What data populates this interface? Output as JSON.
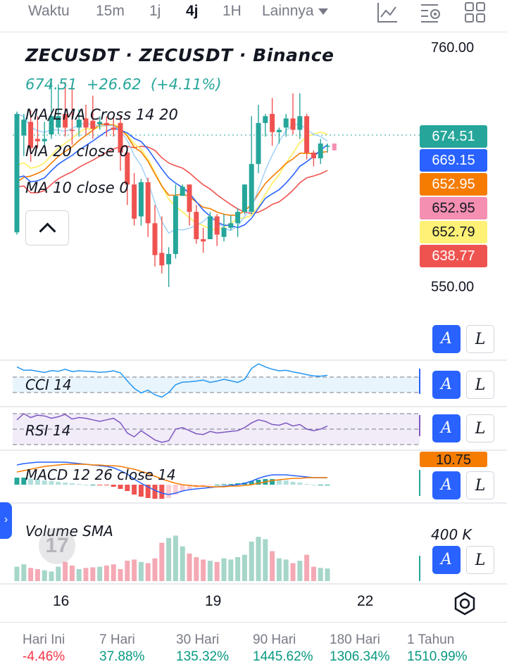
{
  "toolbar": {
    "items": [
      "Waktu",
      "15m",
      "1j",
      "4j",
      "1H",
      "Lainnya"
    ],
    "active": "4j",
    "icons": [
      "chart-style-icon",
      "indicator-settings-icon",
      "layout-grid-icon"
    ]
  },
  "legend": {
    "title": "ZECUSDT · ZECUSDT · Binance",
    "price": "674.51  +26.62  (+4.11%)",
    "ma_ema_cross": "MA/EMA Cross 14 20",
    "ma20": "MA 20 close 0",
    "ma10": "MA 10 close 0"
  },
  "price_axis": {
    "top": "760.00",
    "mid": "550.00"
  },
  "price_tags": [
    {
      "value": "674.51",
      "color": "#26a69a"
    },
    {
      "value": "669.15",
      "color": "#2962ff"
    },
    {
      "value": "652.95",
      "color": "#f57c00"
    },
    {
      "value": "652.95",
      "color": "#f48fb1"
    },
    {
      "value": "652.79",
      "color": "#fff176"
    },
    {
      "value": "638.77",
      "color": "#ef5350"
    }
  ],
  "panes": {
    "cci": "CCI 14",
    "rsi": "RSI 14",
    "macd": "MACD 12 26 close 14",
    "macd_tag": "10.75",
    "volume": "Volume SMA",
    "volume_axis": "400 K"
  },
  "buttons": {
    "a": "A",
    "l": "L"
  },
  "watermark": "17",
  "dates": [
    "16",
    "19",
    "22"
  ],
  "performance": [
    {
      "label": "Hari Ini",
      "value": "-4.46%",
      "sign": "neg"
    },
    {
      "label": "7 Hari",
      "value": "37.88%",
      "sign": "pos"
    },
    {
      "label": "30 Hari",
      "value": "135.32%",
      "sign": "pos"
    },
    {
      "label": "90 Hari",
      "value": "1445.62%",
      "sign": "pos"
    },
    {
      "label": "180 Hari",
      "value": "1306.34%",
      "sign": "pos"
    },
    {
      "label": "1 Tahun",
      "value": "1510.99%",
      "sign": "pos"
    }
  ],
  "chart_data": {
    "type": "candlestick",
    "symbol": "ZECUSDT",
    "interval": "4j",
    "ylim": [
      530,
      770
    ],
    "colors": {
      "up": "#26a69a",
      "down": "#ef5350",
      "ma_fast": "#2962ff",
      "ema_slow": "#f57c00",
      "ma20": "#ef5350",
      "ma10": "#fff176",
      "cross": "#90caf9"
    },
    "candles": [
      [
        598,
        702,
        596,
        704
      ],
      [
        683,
        697,
        665,
        702
      ],
      [
        695,
        672,
        660,
        705
      ],
      [
        680,
        678,
        672,
        700
      ],
      [
        678,
        680,
        674,
        695
      ],
      [
        684,
        700,
        680,
        732
      ],
      [
        690,
        700,
        684,
        728
      ],
      [
        702,
        690,
        682,
        730
      ],
      [
        688,
        687,
        675,
        728
      ],
      [
        690,
        697,
        682,
        706
      ],
      [
        698,
        690,
        684,
        710
      ],
      [
        696,
        689,
        680,
        718
      ],
      [
        693,
        695,
        688,
        700
      ],
      [
        694,
        692,
        682,
        700
      ],
      [
        690,
        688,
        682,
        700
      ],
      [
        694,
        668,
        652,
        700
      ],
      [
        668,
        640,
        622,
        674
      ],
      [
        640,
        610,
        604,
        650
      ],
      [
        612,
        642,
        604,
        645
      ],
      [
        642,
        606,
        594,
        646
      ],
      [
        606,
        578,
        568,
        622
      ],
      [
        580,
        569,
        562,
        612
      ],
      [
        570,
        579,
        550,
        585
      ],
      [
        579,
        630,
        575,
        640
      ],
      [
        630,
        638,
        630,
        640
      ],
      [
        640,
        616,
        604,
        640
      ],
      [
        616,
        592,
        588,
        622
      ],
      [
        592,
        590,
        580,
        602
      ],
      [
        592,
        612,
        592,
        616
      ],
      [
        612,
        596,
        586,
        614
      ],
      [
        594,
        602,
        590,
        614
      ],
      [
        602,
        606,
        600,
        613
      ],
      [
        606,
        616,
        594,
        619
      ],
      [
        616,
        640,
        614,
        640
      ],
      [
        616,
        658,
        614,
        700
      ],
      [
        658,
        694,
        650,
        710
      ],
      [
        694,
        700,
        682,
        702
      ],
      [
        702,
        686,
        674,
        716
      ],
      [
        686,
        688,
        676,
        690
      ],
      [
        690,
        698,
        682,
        702
      ],
      [
        698,
        688,
        684,
        720
      ],
      [
        688,
        700,
        680,
        720
      ],
      [
        700,
        668,
        662,
        702
      ],
      [
        668,
        663,
        656,
        670
      ],
      [
        663,
        676,
        658,
        680
      ],
      [
        674,
        674,
        668,
        676
      ]
    ],
    "cci": [
      120,
      98,
      100,
      92,
      84,
      96,
      92,
      105,
      90,
      95,
      92,
      90,
      85,
      88,
      95,
      82,
      30,
      -18,
      -48,
      -30,
      -60,
      -75,
      -45,
      5,
      22,
      24,
      28,
      35,
      20,
      28,
      40,
      30,
      20,
      40,
      110,
      140,
      120,
      105,
      95,
      98,
      88,
      80,
      70,
      62,
      60,
      66
    ],
    "rsi": [
      62,
      70,
      65,
      68,
      67,
      64,
      66,
      69,
      63,
      65,
      64,
      62,
      60,
      62,
      64,
      58,
      45,
      40,
      48,
      42,
      36,
      33,
      35,
      50,
      52,
      48,
      44,
      43,
      47,
      45,
      46,
      47,
      48,
      52,
      58,
      62,
      60,
      56,
      55,
      58,
      54,
      56,
      50,
      48,
      50,
      54
    ],
    "macd": {
      "line": [
        28,
        30,
        31,
        32,
        32,
        32,
        32,
        32,
        31,
        30,
        29,
        28,
        27,
        26,
        24,
        20,
        15,
        8,
        2,
        -3,
        -8,
        -12,
        -14,
        -12,
        -9,
        -7,
        -6,
        -5,
        -4,
        -3,
        -2,
        -1,
        0,
        2,
        5,
        9,
        12,
        14,
        14,
        14,
        13,
        12,
        11,
        10,
        10,
        10
      ],
      "signal": [
        18,
        20,
        22,
        24,
        26,
        27,
        28,
        29,
        29,
        29,
        29,
        28,
        28,
        27,
        27,
        26,
        24,
        22,
        19,
        16,
        12,
        8,
        5,
        2,
        0,
        -1,
        -2,
        -2,
        -3,
        -3,
        -3,
        -2,
        -2,
        -1,
        0,
        2,
        4,
        6,
        7,
        8,
        9,
        9,
        10,
        10,
        10,
        10
      ]
    },
    "volume": [
      120,
      140,
      110,
      100,
      90,
      80,
      120,
      160,
      130,
      100,
      110,
      115,
      120,
      130,
      140,
      100,
      170,
      180,
      160,
      150,
      190,
      320,
      360,
      380,
      290,
      230,
      200,
      180,
      170,
      160,
      190,
      180,
      200,
      220,
      330,
      370,
      350,
      250,
      190,
      180,
      150,
      170,
      220,
      120,
      110,
      105
    ],
    "volume_max": 400
  }
}
